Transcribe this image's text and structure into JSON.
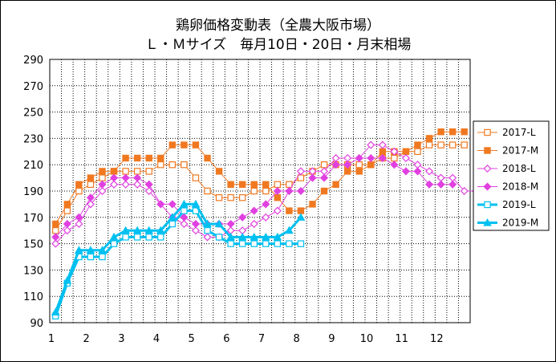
{
  "chart_data": {
    "type": "line",
    "title": "鶏卵価格変動表（全農大阪市場）",
    "subtitle": "Ｌ・Ｍサイズ　毎月10日・20日・月末相場",
    "ylim": [
      90,
      290
    ],
    "yticks": [
      90,
      110,
      130,
      150,
      170,
      190,
      210,
      230,
      250,
      270,
      290
    ],
    "xticks": [
      "1",
      "2",
      "3",
      "4",
      "5",
      "6",
      "7",
      "8",
      "9",
      "10",
      "11",
      "12"
    ],
    "grid": true,
    "legend_position": "right",
    "series": [
      {
        "name": "2017-L",
        "color": "#F07820",
        "marker": "square-open",
        "width": 1,
        "values": [
          160,
          175,
          190,
          195,
          200,
          205,
          205,
          205,
          205,
          210,
          210,
          210,
          200,
          190,
          185,
          185,
          185,
          190,
          190,
          195,
          195,
          200,
          205,
          210,
          210,
          210,
          210,
          210,
          215,
          215,
          220,
          220,
          225,
          225,
          225,
          225
        ]
      },
      {
        "name": "2017-M",
        "color": "#F07820",
        "marker": "square-filled",
        "width": 1,
        "values": [
          165,
          180,
          195,
          200,
          205,
          205,
          215,
          215,
          215,
          215,
          225,
          225,
          225,
          215,
          205,
          195,
          195,
          195,
          195,
          185,
          175,
          175,
          180,
          190,
          195,
          205,
          205,
          210,
          220,
          220,
          220,
          225,
          230,
          235,
          235,
          235
        ]
      },
      {
        "name": "2018-L",
        "color": "#E040E0",
        "marker": "diamond-open",
        "width": 1,
        "values": [
          150,
          160,
          165,
          180,
          190,
          195,
          195,
          195,
          190,
          180,
          170,
          165,
          160,
          155,
          155,
          160,
          160,
          165,
          170,
          175,
          190,
          205,
          205,
          205,
          215,
          215,
          215,
          225,
          225,
          220,
          215,
          210,
          205,
          200,
          200,
          190,
          190,
          190
        ]
      },
      {
        "name": "2018-M",
        "color": "#E040E0",
        "marker": "diamond-filled",
        "width": 1,
        "values": [
          155,
          165,
          170,
          185,
          195,
          200,
          200,
          200,
          195,
          180,
          180,
          170,
          165,
          165,
          165,
          165,
          170,
          175,
          180,
          190,
          190,
          190,
          200,
          200,
          210,
          210,
          215,
          215,
          215,
          210,
          205,
          205,
          195,
          195,
          195
        ]
      },
      {
        "name": "2019-L",
        "color": "#00C0F0",
        "marker": "square-open",
        "width": 3,
        "values": [
          95,
          120,
          140,
          140,
          140,
          150,
          155,
          155,
          155,
          155,
          165,
          175,
          175,
          160,
          155,
          150,
          150,
          150,
          150,
          150,
          150,
          150
        ]
      },
      {
        "name": "2019-M",
        "color": "#00C0F0",
        "marker": "triangle-filled",
        "width": 3,
        "values": [
          98,
          122,
          145,
          145,
          145,
          155,
          160,
          160,
          160,
          160,
          170,
          180,
          180,
          165,
          165,
          155,
          155,
          155,
          155,
          155,
          160,
          170
        ]
      }
    ]
  }
}
